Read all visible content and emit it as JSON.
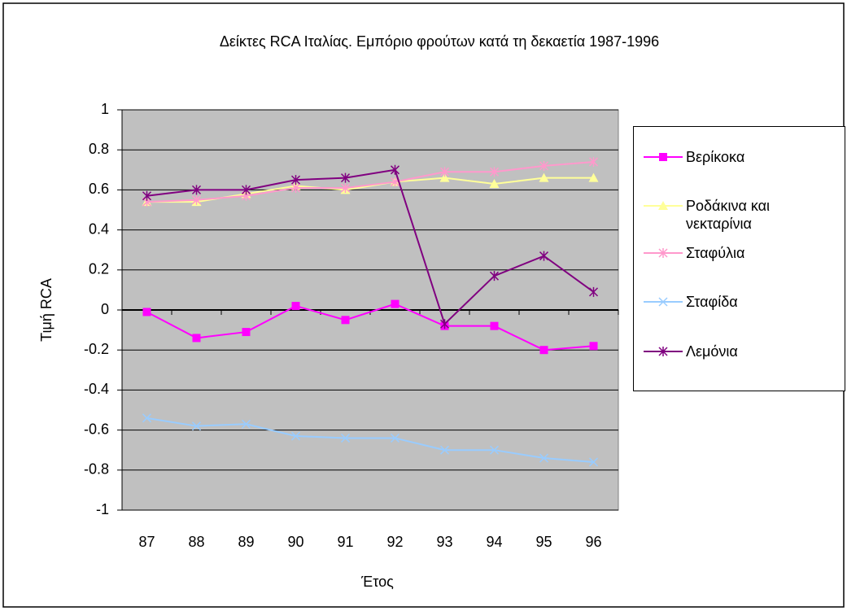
{
  "chart_data": {
    "type": "line",
    "title": "Δείκτες RCA Ιταλίας. Εμπόριο φρούτων κατά τη δεκαετία 1987-1996",
    "x_label": "Έτος",
    "y_label": "Τιμή RCA",
    "categories": [
      "87",
      "88",
      "89",
      "90",
      "91",
      "92",
      "93",
      "94",
      "95",
      "96"
    ],
    "ylim": [
      -1,
      1
    ],
    "yticks": [
      -1,
      -0.8,
      -0.6,
      -0.4,
      -0.2,
      0,
      0.2,
      0.4,
      0.6,
      0.8,
      1
    ],
    "grid": true,
    "legend": "right",
    "series": [
      {
        "name": "Βερίκοκα",
        "color": "#ff00ff",
        "marker": "square",
        "values": [
          -0.01,
          -0.14,
          -0.11,
          0.02,
          -0.05,
          0.03,
          -0.08,
          -0.08,
          -0.2,
          -0.18
        ]
      },
      {
        "name": "Ροδάκινα και νεκταρίνια",
        "color": "#ffff99",
        "marker": "triangle",
        "values": [
          0.54,
          0.54,
          0.58,
          0.62,
          0.6,
          0.64,
          0.66,
          0.63,
          0.66,
          0.66
        ]
      },
      {
        "name": "Σταφύλια",
        "color": "#ff99cc",
        "marker": "asterisk",
        "values": [
          0.54,
          0.55,
          0.57,
          0.61,
          0.61,
          0.64,
          0.69,
          0.69,
          0.72,
          0.74
        ]
      },
      {
        "name": "Σταφίδα",
        "color": "#99ccff",
        "marker": "x",
        "values": [
          -0.54,
          -0.58,
          -0.57,
          -0.63,
          -0.64,
          -0.64,
          -0.7,
          -0.7,
          -0.74,
          -0.76
        ]
      },
      {
        "name": "Λεμόνια",
        "color": "#800080",
        "marker": "asterisk",
        "values": [
          0.57,
          0.6,
          0.6,
          0.65,
          0.66,
          0.7,
          -0.07,
          0.17,
          0.27,
          0.09
        ]
      }
    ]
  }
}
